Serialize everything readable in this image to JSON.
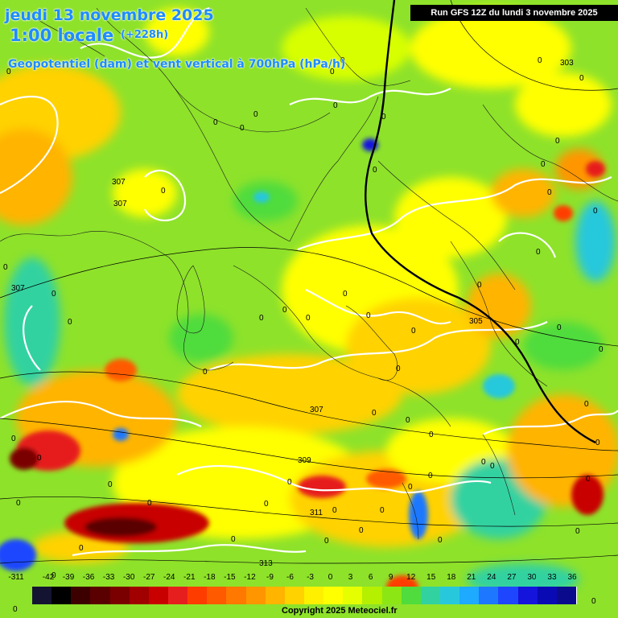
{
  "header": {
    "line1": "jeudi 13 novembre 2025",
    "line2": "1:00 locale",
    "line2_suffix": "(+228h)",
    "line3": "Geopotentiel (dam) et vent vertical à 700hPa (hPa/h)",
    "run_info": "Run GFS 12Z du lundi 3 novembre 2025"
  },
  "contours": {
    "geopotential_labels": [
      "303",
      "305",
      "307",
      "307",
      "307",
      "307",
      "309",
      "311",
      "313"
    ],
    "zero_labels": [
      "0"
    ]
  },
  "legend": {
    "ticks": [
      "-311",
      "-42",
      "-39",
      "-36",
      "-33",
      "-30",
      "-27",
      "-24",
      "-21",
      "-18",
      "-15",
      "-12",
      "-9",
      "-6",
      "-3",
      "0",
      "3",
      "6",
      "9",
      "12",
      "15",
      "18",
      "21",
      "24",
      "27",
      "30",
      "33",
      "36"
    ],
    "colors": [
      "#141432",
      "#000000",
      "#3c0000",
      "#5a0000",
      "#7a0000",
      "#a00000",
      "#c80000",
      "#e61e1e",
      "#ff3c00",
      "#ff5a00",
      "#ff7800",
      "#ff9600",
      "#ffb400",
      "#ffd200",
      "#fff000",
      "#ffff00",
      "#e6ff00",
      "#b4f000",
      "#8ce614",
      "#50dc3c",
      "#32d2a0",
      "#28c8dc",
      "#1eaaff",
      "#1e78ff",
      "#1e46ff",
      "#1414dc",
      "#0a0ab4",
      "#0a0a8c"
    ]
  },
  "copyright": "Copyright 2025 Meteociel.fr"
}
